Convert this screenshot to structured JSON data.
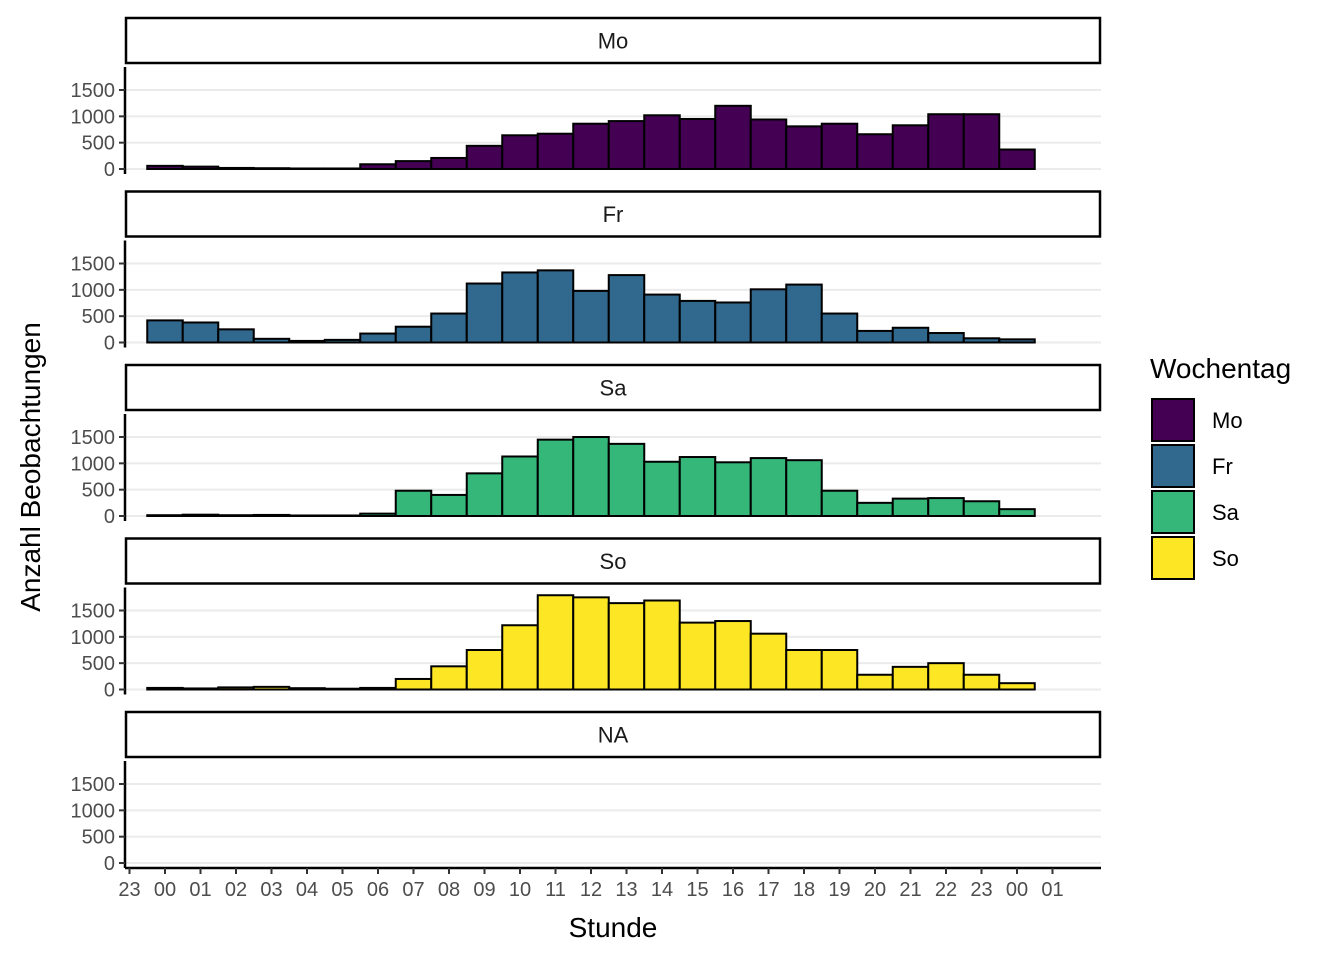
{
  "chart_data": {
    "type": "bar",
    "facet_layout": "single-column",
    "xlabel": "Stunde",
    "ylabel": "Anzahl Beobachtungen",
    "x_tick_labels": [
      "23",
      "00",
      "01",
      "02",
      "03",
      "04",
      "05",
      "06",
      "07",
      "08",
      "09",
      "10",
      "11",
      "12",
      "13",
      "14",
      "15",
      "16",
      "17",
      "18",
      "19",
      "20",
      "21",
      "22",
      "23",
      "00",
      "01"
    ],
    "bin_hours": [
      "00",
      "01",
      "02",
      "03",
      "04",
      "05",
      "06",
      "07",
      "08",
      "09",
      "10",
      "11",
      "12",
      "13",
      "14",
      "15",
      "16",
      "17",
      "18",
      "19",
      "20",
      "21",
      "22",
      "23",
      "00"
    ],
    "y_ticks": [
      0,
      500,
      1000,
      1500
    ],
    "ylim": [
      0,
      1880
    ],
    "grid": "horizontal-major",
    "legend": {
      "title": "Wochentag",
      "placement": "right",
      "items": [
        {
          "label": "Mo",
          "color": "#440154"
        },
        {
          "label": "Fr",
          "color": "#31688e"
        },
        {
          "label": "Sa",
          "color": "#35b779"
        },
        {
          "label": "So",
          "color": "#fde725"
        }
      ]
    },
    "panels": [
      {
        "label": "Mo",
        "color": "#440154",
        "values": [
          60,
          45,
          20,
          15,
          10,
          10,
          90,
          150,
          210,
          440,
          640,
          670,
          860,
          910,
          1020,
          950,
          1200,
          940,
          810,
          860,
          660,
          830,
          1040,
          1040,
          370
        ]
      },
      {
        "label": "Fr",
        "color": "#31688e",
        "values": [
          420,
          380,
          250,
          70,
          30,
          50,
          170,
          300,
          550,
          1120,
          1330,
          1370,
          980,
          1280,
          910,
          790,
          760,
          1010,
          1100,
          550,
          220,
          280,
          180,
          80,
          60
        ]
      },
      {
        "label": "Sa",
        "color": "#35b779",
        "values": [
          15,
          25,
          15,
          20,
          10,
          10,
          45,
          480,
          400,
          810,
          1130,
          1450,
          1500,
          1370,
          1030,
          1120,
          1020,
          1100,
          1060,
          480,
          250,
          330,
          340,
          280,
          130
        ]
      },
      {
        "label": "So",
        "color": "#fde725",
        "values": [
          30,
          20,
          40,
          50,
          25,
          15,
          30,
          200,
          440,
          750,
          1220,
          1790,
          1750,
          1640,
          1690,
          1270,
          1300,
          1060,
          750,
          750,
          280,
          430,
          500,
          280,
          120
        ]
      },
      {
        "label": "NA",
        "color": "#808080",
        "values": []
      }
    ]
  }
}
